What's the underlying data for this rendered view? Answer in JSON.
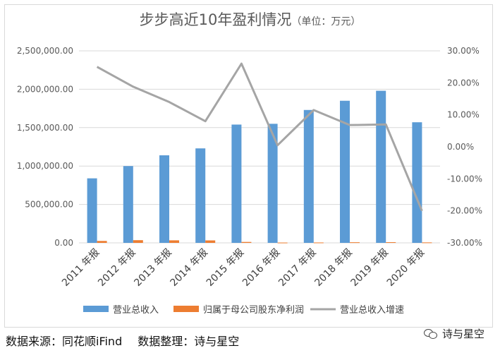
{
  "title": {
    "main": "步步高近10年盈利情况",
    "unit": "（单位：万元）"
  },
  "colors": {
    "revenue": "#5b9bd5",
    "net_profit": "#ed7d31",
    "growth": "#a5a5a5",
    "grid": "#d9d9d9",
    "axis_text": "#595959"
  },
  "chart_data": {
    "type": "bar",
    "categories": [
      "2011 年报",
      "2012 年报",
      "2013 年报",
      "2014 年报",
      "2015 年报",
      "2016 年报",
      "2017 年报",
      "2018 年报",
      "2019 年报",
      "2020 年报"
    ],
    "series": [
      {
        "name": "营业总收入",
        "kind": "bar",
        "axis": "left",
        "values": [
          840000,
          1000000,
          1140000,
          1230000,
          1540000,
          1550000,
          1730000,
          1850000,
          1980000,
          1570000
        ]
      },
      {
        "name": "归属于母公司股东净利润",
        "kind": "bar",
        "axis": "left",
        "values": [
          25000,
          35000,
          33000,
          32000,
          12000,
          4000,
          5000,
          8000,
          9000,
          6000
        ]
      },
      {
        "name": "营业总收入增速",
        "kind": "line",
        "axis": "right",
        "values": [
          25.0,
          18.8,
          14.0,
          8.0,
          26.0,
          0.5,
          11.5,
          6.8,
          7.0,
          -20.0
        ]
      }
    ],
    "y_left": {
      "min": 0,
      "max": 2500000,
      "ticks": [
        "0.00",
        "500,000.00",
        "1,000,000.00",
        "1,500,000.00",
        "2,000,000.00",
        "2,500,000.00"
      ]
    },
    "y_right": {
      "min": -30,
      "max": 30,
      "ticks": [
        "-30.00%",
        "-20.00%",
        "-10.00%",
        "0.00%",
        "10.00%",
        "20.00%",
        "30.00%"
      ]
    },
    "grid": true,
    "legend_position": "bottom"
  },
  "footer": {
    "source": "数据来源：同花顺iFind",
    "curator": "数据整理：诗与星空"
  },
  "brand": {
    "icon": "wechat-icon",
    "name": "诗与星空"
  }
}
